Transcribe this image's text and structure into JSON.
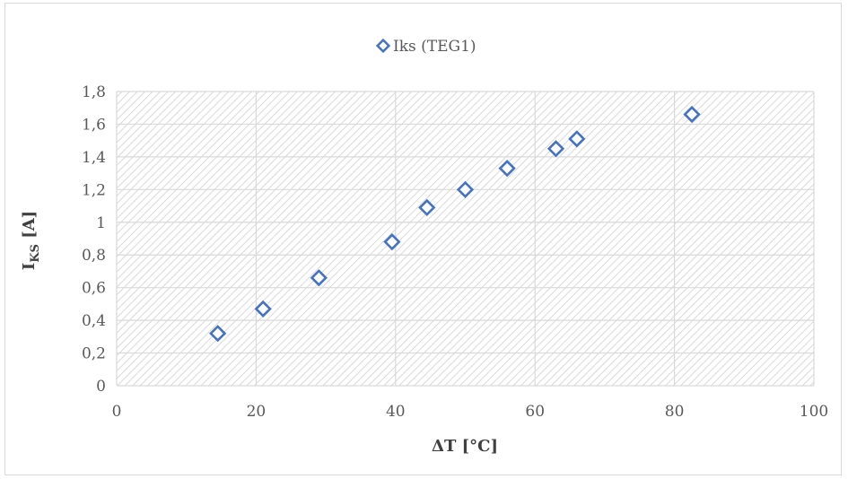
{
  "chart_data": {
    "type": "scatter",
    "xlabel": "ΔT [°C]",
    "ylabel_main": "I",
    "ylabel_sub": "KS",
    "ylabel_rest": " [A]",
    "xlim": [
      0,
      100
    ],
    "ylim": [
      0,
      1.8
    ],
    "x_ticks": [
      0,
      20,
      40,
      60,
      80,
      100
    ],
    "y_ticks": [
      0,
      0.2,
      0.4,
      0.6,
      0.8,
      1,
      1.2,
      1.4,
      1.6,
      1.8
    ],
    "x_tick_labels": [
      "0",
      "20",
      "40",
      "60",
      "80",
      "100"
    ],
    "y_tick_labels": [
      "0",
      "0,2",
      "0,4",
      "0,6",
      "0,8",
      "1",
      "1,2",
      "1,4",
      "1,6",
      "1,8"
    ],
    "grid": true,
    "plot_background": "hatched",
    "legend_position": "top-center",
    "series": [
      {
        "name": "Iks (TEG1)",
        "color": "#4472c4",
        "marker": "diamond-open",
        "x": [
          14.5,
          21,
          29,
          39.5,
          44.5,
          50,
          56,
          63,
          66,
          82.5
        ],
        "y": [
          0.32,
          0.47,
          0.66,
          0.88,
          1.09,
          1.2,
          1.33,
          1.45,
          1.51,
          1.66
        ]
      }
    ]
  }
}
